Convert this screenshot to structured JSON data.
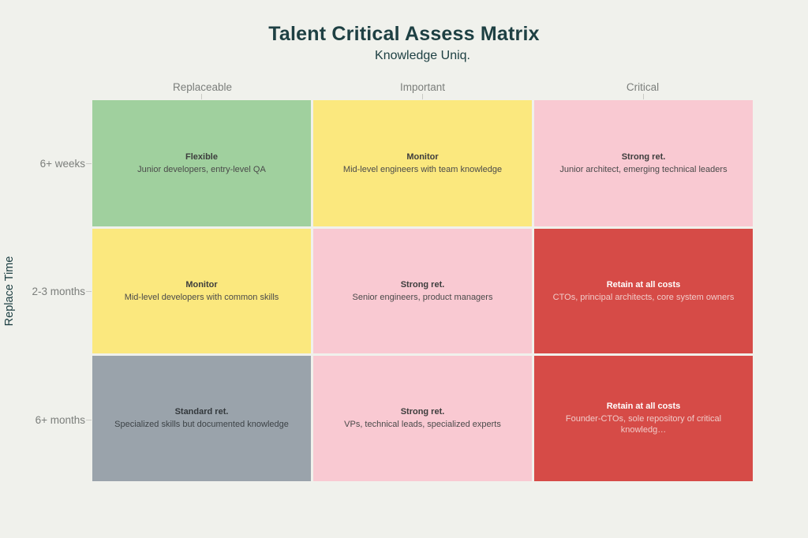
{
  "header": {
    "title": "Talent Critical Assess Matrix",
    "subtitle": "Knowledge Uniq."
  },
  "axes": {
    "y_label": "Replace Time",
    "columns": [
      "Replaceable",
      "Important",
      "Critical"
    ],
    "rows": [
      "6+ weeks",
      "2-3 months",
      "6+ months"
    ]
  },
  "palette": {
    "background": "#f0f1ec",
    "title_color": "#1e4043",
    "axis_label_color": "#7b7e7b",
    "green": "#a0d09e",
    "yellow": "#fbe87e",
    "pink": "#f9c9d2",
    "red": "#d64b47",
    "gray": "#9aa3ab"
  },
  "matrix": {
    "cells": [
      [
        {
          "label": "Flexible",
          "description": "Junior developers, entry-level QA",
          "bg": "#a0d09e",
          "label_color": "#3d3d3d",
          "desc_color": "#4a4a4a"
        },
        {
          "label": "Monitor",
          "description": "Mid-level engineers with team knowledge",
          "bg": "#fbe87e",
          "label_color": "#3d3d3d",
          "desc_color": "#4a4a4a"
        },
        {
          "label": "Strong ret.",
          "description": "Junior architect, emerging technical leaders",
          "bg": "#f9c9d2",
          "label_color": "#3d3d3d",
          "desc_color": "#4a4a4a"
        }
      ],
      [
        {
          "label": "Monitor",
          "description": "Mid-level developers with common skills",
          "bg": "#fbe87e",
          "label_color": "#3d3d3d",
          "desc_color": "#4a4a4a"
        },
        {
          "label": "Strong ret.",
          "description": "Senior engineers, product managers",
          "bg": "#f9c9d2",
          "label_color": "#3d3d3d",
          "desc_color": "#4a4a4a"
        },
        {
          "label": "Retain at all costs",
          "description": "CTOs, principal architects, core system owners",
          "bg": "#d64b47",
          "label_color": "#ffffff",
          "desc_color": "#f0cbc9"
        }
      ],
      [
        {
          "label": "Standard ret.",
          "description": "Specialized skills but documented knowledge",
          "bg": "#9aa3ab",
          "label_color": "#33383c",
          "desc_color": "#3d4347"
        },
        {
          "label": "Strong ret.",
          "description": "VPs, technical leads, specialized experts",
          "bg": "#f9c9d2",
          "label_color": "#3d3d3d",
          "desc_color": "#4a4a4a"
        },
        {
          "label": "Retain at all costs",
          "description": "Founder-CTOs, sole repository of critical knowledg…",
          "bg": "#d64b47",
          "label_color": "#ffffff",
          "desc_color": "#f0cbc9"
        }
      ]
    ]
  },
  "chart_data": {
    "type": "heatmap",
    "title": "Talent Critical Assess Matrix",
    "subtitle": "Knowledge Uniq.",
    "xlabel": "Knowledge Uniq.",
    "ylabel": "Replace Time",
    "x_categories": [
      "Replaceable",
      "Important",
      "Critical"
    ],
    "y_categories": [
      "6+ weeks",
      "2-3 months",
      "6+ months"
    ],
    "legend": "none",
    "grid": "off",
    "cells": [
      {
        "row": "6+ weeks",
        "column": "Replaceable",
        "label": "Flexible",
        "description": "Junior developers, entry-level QA",
        "color": "#a0d09e",
        "severity": "green"
      },
      {
        "row": "6+ weeks",
        "column": "Important",
        "label": "Monitor",
        "description": "Mid-level engineers with team knowledge",
        "color": "#fbe87e",
        "severity": "yellow"
      },
      {
        "row": "6+ weeks",
        "column": "Critical",
        "label": "Strong ret.",
        "description": "Junior architect, emerging technical leaders",
        "color": "#f9c9d2",
        "severity": "pink"
      },
      {
        "row": "2-3 months",
        "column": "Replaceable",
        "label": "Monitor",
        "description": "Mid-level developers with common skills",
        "color": "#fbe87e",
        "severity": "yellow"
      },
      {
        "row": "2-3 months",
        "column": "Important",
        "label": "Strong ret.",
        "description": "Senior engineers, product managers",
        "color": "#f9c9d2",
        "severity": "pink"
      },
      {
        "row": "2-3 months",
        "column": "Critical",
        "label": "Retain at all costs",
        "description": "CTOs, principal architects, core system owners",
        "color": "#d64b47",
        "severity": "red"
      },
      {
        "row": "6+ months",
        "column": "Replaceable",
        "label": "Standard ret.",
        "description": "Specialized skills but documented knowledge",
        "color": "#9aa3ab",
        "severity": "gray"
      },
      {
        "row": "6+ months",
        "column": "Important",
        "label": "Strong ret.",
        "description": "VPs, technical leads, specialized experts",
        "color": "#f9c9d2",
        "severity": "pink"
      },
      {
        "row": "6+ months",
        "column": "Critical",
        "label": "Retain at all costs",
        "description": "Founder-CTOs, sole repository of critical knowledg…",
        "color": "#d64b47",
        "severity": "red"
      }
    ]
  }
}
